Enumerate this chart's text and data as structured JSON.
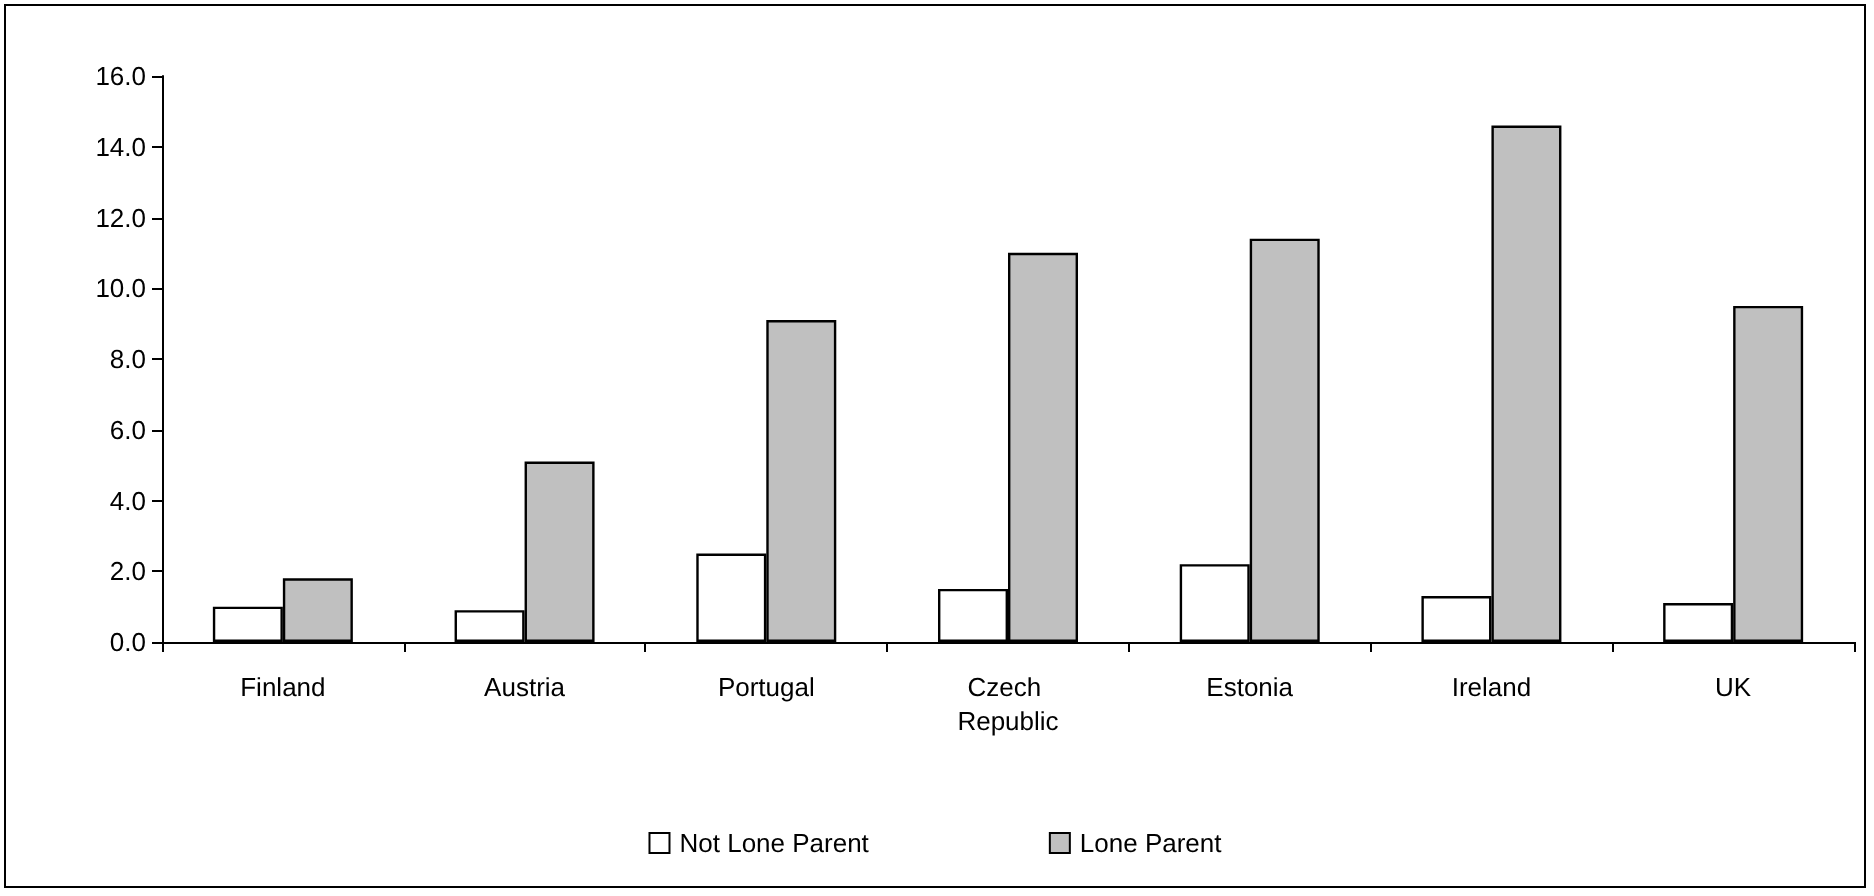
{
  "chart_data": {
    "type": "bar",
    "categories": [
      "Finland",
      "Austria",
      "Portugal",
      "Czech Republic",
      "Estonia",
      "Ireland",
      "UK"
    ],
    "series": [
      {
        "name": "Not Lone Parent",
        "color": "#ffffff",
        "values": [
          1.0,
          0.9,
          2.5,
          1.5,
          2.2,
          1.3,
          1.1
        ]
      },
      {
        "name": "Lone Parent",
        "color": "#c0c0c0",
        "values": [
          1.8,
          5.1,
          9.1,
          11.0,
          11.4,
          14.6,
          9.5
        ]
      }
    ],
    "ylim": [
      0,
      16
    ],
    "yticks": [
      {
        "value": 0,
        "label": "0.0"
      },
      {
        "value": 2,
        "label": "2.0"
      },
      {
        "value": 4,
        "label": "4.0"
      },
      {
        "value": 6,
        "label": "6.0"
      },
      {
        "value": 8,
        "label": "8.0"
      },
      {
        "value": 10,
        "label": "10.0"
      },
      {
        "value": 12,
        "label": "12.0"
      },
      {
        "value": 14,
        "label": "14.0"
      },
      {
        "value": 16,
        "label": "16.0"
      }
    ],
    "grid": false,
    "legend": "bottom"
  }
}
